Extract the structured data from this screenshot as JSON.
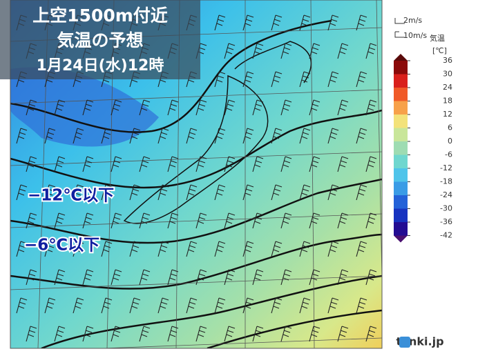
{
  "header": {
    "title": "上空1500m付近",
    "subtitle": "気温の予想",
    "date": "1月24日(水)12時"
  },
  "annotations": [
    "−12℃以下",
    "−6℃以下"
  ],
  "legend": {
    "wind": [
      "2m/s",
      "10m/s"
    ],
    "title": "気温",
    "unit": "[℃]",
    "ticks": [
      36,
      30,
      24,
      18,
      12,
      6,
      0,
      -6,
      -12,
      -18,
      -24,
      -30,
      -36,
      -42
    ],
    "colors": [
      "#8b0a0a",
      "#d9201c",
      "#f05a28",
      "#f7a14a",
      "#f3e27a",
      "#c9e69a",
      "#9edcb2",
      "#6fd7cf",
      "#4fc4ea",
      "#3a9ce6",
      "#2462d8",
      "#1733c0",
      "#230c92"
    ],
    "top_color": "#5a0a0a",
    "bottom_color": "#4a1070"
  },
  "logo": "tenki.jp"
}
